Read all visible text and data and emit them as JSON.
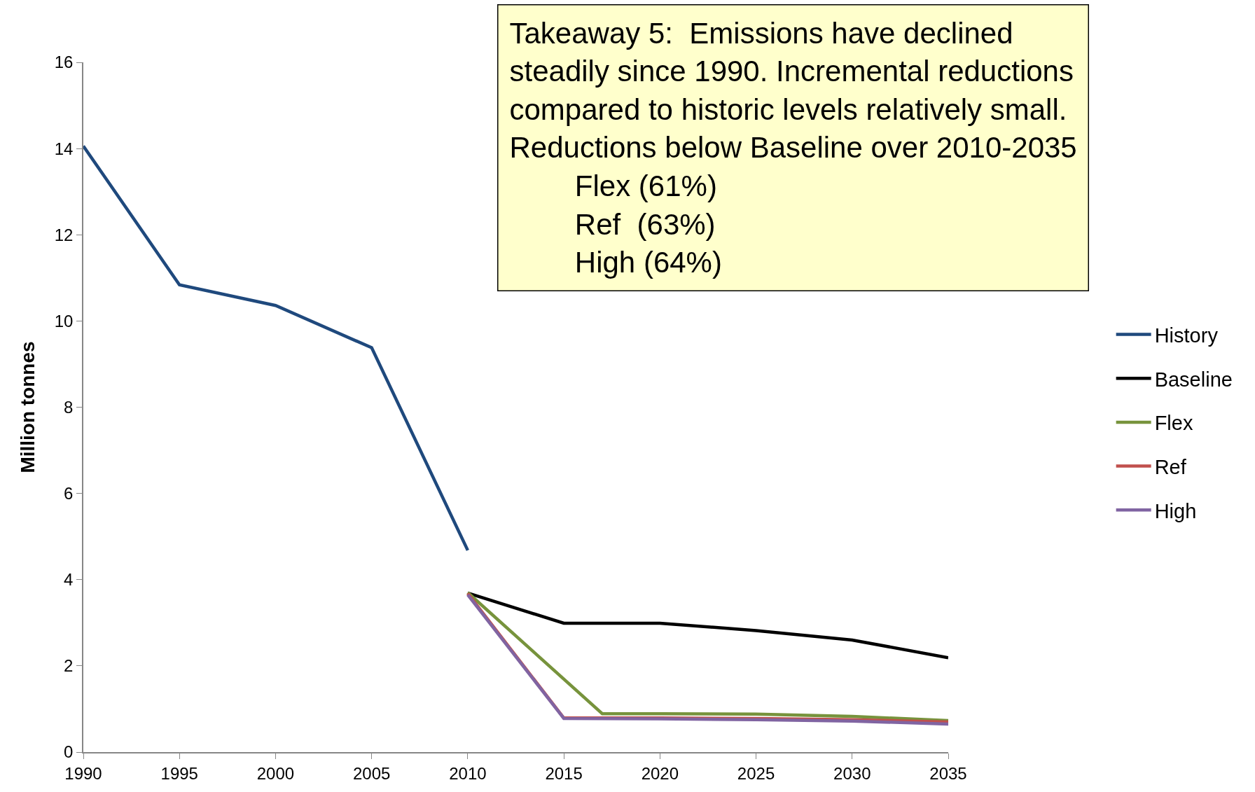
{
  "chart_data": {
    "type": "line",
    "ylabel": "Million tonnes",
    "series": [
      {
        "name": "History",
        "color": "#1f497d",
        "x": [
          1990,
          1995,
          2000,
          2005,
          2010
        ],
        "values": [
          14.06,
          10.84,
          10.36,
          9.38,
          4.68
        ]
      },
      {
        "name": "Baseline",
        "color": "#000000",
        "x": [
          2010,
          2015,
          2020,
          2025,
          2030,
          2035
        ],
        "values": [
          3.69,
          2.99,
          2.99,
          2.82,
          2.6,
          2.19
        ]
      },
      {
        "name": "Flex",
        "color": "#77933c",
        "x": [
          2010,
          2017,
          2020,
          2025,
          2030,
          2035
        ],
        "values": [
          3.7,
          0.89,
          0.89,
          0.88,
          0.83,
          0.73
        ]
      },
      {
        "name": "Ref",
        "color": "#c0504d",
        "x": [
          2010,
          2015,
          2020,
          2025,
          2030,
          2035
        ],
        "values": [
          3.68,
          0.79,
          0.79,
          0.78,
          0.75,
          0.7
        ]
      },
      {
        "name": "High",
        "color": "#8064a2",
        "x": [
          2010,
          2015,
          2020,
          2025,
          2030,
          2035
        ],
        "values": [
          3.65,
          0.78,
          0.77,
          0.75,
          0.72,
          0.65
        ]
      }
    ],
    "xlim": [
      1990,
      2035
    ],
    "xticks": [
      1990,
      1995,
      2000,
      2005,
      2010,
      2015,
      2020,
      2025,
      2030,
      2035
    ],
    "ylim": [
      0,
      16
    ],
    "yticks": [
      0,
      2,
      4,
      6,
      8,
      10,
      12,
      14,
      16
    ],
    "grid": false,
    "legend": "right",
    "marker": "none",
    "line_style": "solid",
    "annotations": [
      "Takeaway 5:  Emissions have declined",
      "steadily since 1990. Incremental reductions",
      "compared to historic levels relatively small.",
      "Reductions below Baseline over 2010-2035",
      "Flex (61%)",
      "Ref  (63%)",
      "High (64%)"
    ]
  }
}
